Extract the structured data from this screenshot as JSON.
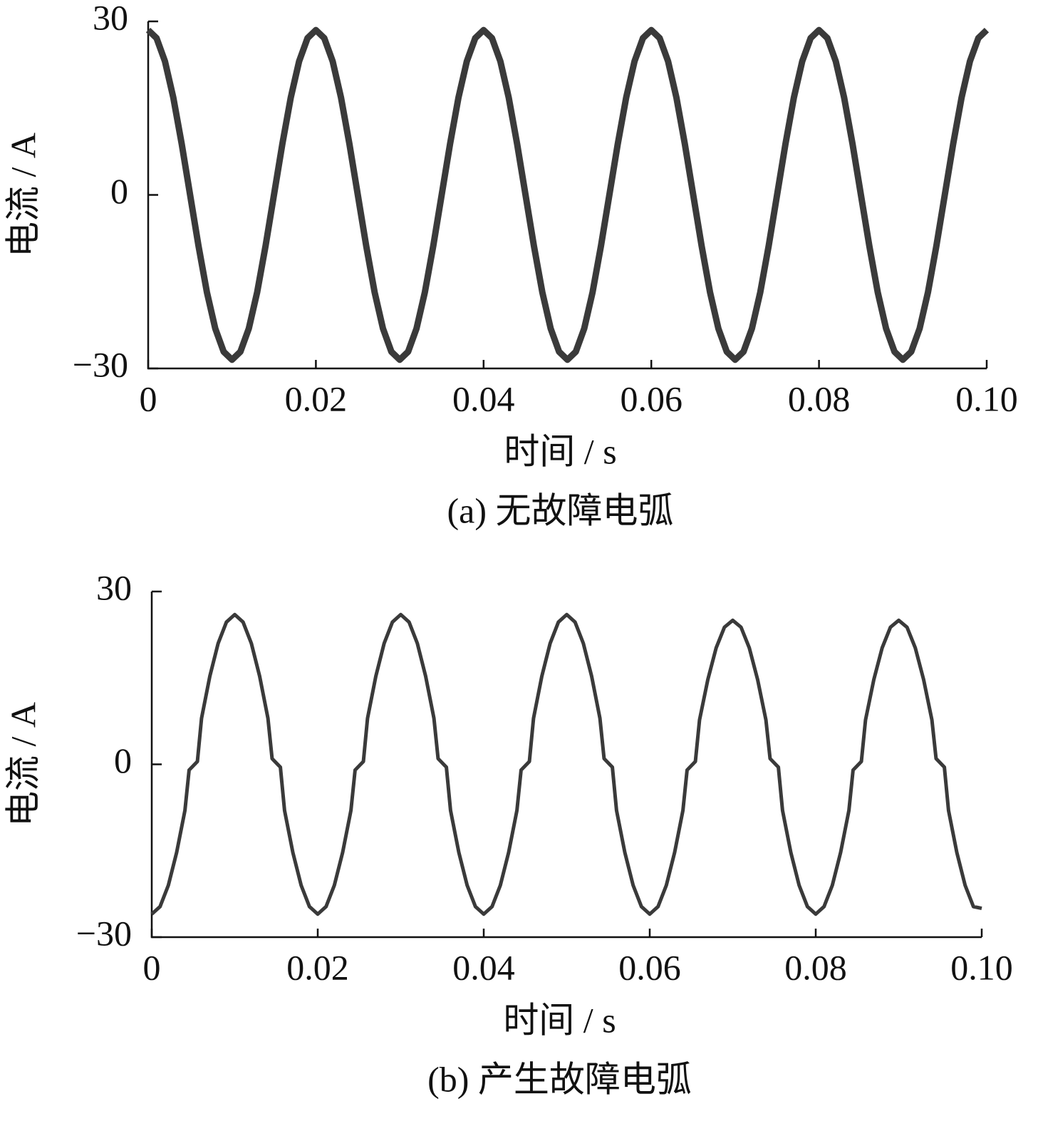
{
  "chart_data": [
    {
      "type": "line",
      "caption": "(a) 无故障电弧",
      "xlabel": "时间 / s",
      "ylabel": "电流 / A",
      "x": [
        0,
        0.001,
        0.002,
        0.003,
        0.004,
        0.005,
        0.006,
        0.007,
        0.008,
        0.009,
        0.01,
        0.011,
        0.012,
        0.013,
        0.014,
        0.015,
        0.016,
        0.017,
        0.018,
        0.019,
        0.02,
        0.021,
        0.022,
        0.023,
        0.024,
        0.025,
        0.026,
        0.027,
        0.028,
        0.029,
        0.03,
        0.031,
        0.032,
        0.033,
        0.034,
        0.035,
        0.036,
        0.037,
        0.038,
        0.039,
        0.04,
        0.041,
        0.042,
        0.043,
        0.044,
        0.045,
        0.046,
        0.047,
        0.048,
        0.049,
        0.05,
        0.051,
        0.052,
        0.053,
        0.054,
        0.055,
        0.056,
        0.057,
        0.058,
        0.059,
        0.06,
        0.061,
        0.062,
        0.063,
        0.064,
        0.065,
        0.066,
        0.067,
        0.068,
        0.069,
        0.07,
        0.071,
        0.072,
        0.073,
        0.074,
        0.075,
        0.076,
        0.077,
        0.078,
        0.079,
        0.08,
        0.081,
        0.082,
        0.083,
        0.084,
        0.085,
        0.086,
        0.087,
        0.088,
        0.089,
        0.09,
        0.091,
        0.092,
        0.093,
        0.094,
        0.095,
        0.096,
        0.097,
        0.098,
        0.099,
        0.1
      ],
      "series": [
        {
          "color": "#3a3a3a",
          "values": [
            28.5,
            27.1,
            23.1,
            16.8,
            8.8,
            0,
            -8.8,
            -16.8,
            -23.1,
            -27.1,
            -28.5,
            -27.1,
            -23.1,
            -16.8,
            -8.8,
            0,
            8.8,
            16.8,
            23.1,
            27.1,
            28.5,
            27.1,
            23.1,
            16.8,
            8.8,
            0,
            -8.8,
            -16.8,
            -23.1,
            -27.1,
            -28.5,
            -27.1,
            -23.1,
            -16.8,
            -8.8,
            0,
            8.8,
            16.8,
            23.1,
            27.1,
            28.5,
            27.1,
            23.1,
            16.8,
            8.8,
            0,
            -8.8,
            -16.8,
            -23.1,
            -27.1,
            -28.5,
            -27.1,
            -23.1,
            -16.8,
            -8.8,
            0,
            8.8,
            16.8,
            23.1,
            27.1,
            28.5,
            27.1,
            23.1,
            16.8,
            8.8,
            0,
            -8.8,
            -16.8,
            -23.1,
            -27.1,
            -28.5,
            -27.1,
            -23.1,
            -16.8,
            -8.8,
            0,
            8.8,
            16.8,
            23.1,
            27.1,
            28.5,
            27.1,
            23.1,
            16.8,
            8.8,
            0,
            -8.8,
            -16.8,
            -23.1,
            -27.1,
            -28.5,
            -27.1,
            -23.1,
            -16.8,
            -8.8,
            0,
            8.8,
            16.8,
            23.1,
            27.1,
            28.5
          ]
        }
      ],
      "xlim": [
        0,
        0.1
      ],
      "xticks": [
        0,
        0.02,
        0.04,
        0.06,
        0.08,
        {
          "value": 0.1,
          "label": "0.10"
        }
      ],
      "ylim": [
        -30,
        30
      ],
      "yticks": [
        {
          "value": -30,
          "label": "−30"
        },
        0,
        30
      ]
    },
    {
      "type": "line",
      "caption": "(b) 产生故障电弧",
      "xlabel": "时间 / s",
      "ylabel": "电流 / A",
      "x": [
        0,
        0.001,
        0.002,
        0.003,
        0.004,
        0.0045,
        0.0055,
        0.006,
        0.007,
        0.008,
        0.009,
        0.01,
        0.011,
        0.012,
        0.013,
        0.014,
        0.0145,
        0.0155,
        0.016,
        0.017,
        0.018,
        0.019,
        0.02,
        0.021,
        0.022,
        0.023,
        0.024,
        0.0245,
        0.0255,
        0.026,
        0.027,
        0.028,
        0.029,
        0.03,
        0.031,
        0.032,
        0.033,
        0.034,
        0.0345,
        0.0355,
        0.036,
        0.037,
        0.038,
        0.039,
        0.04,
        0.041,
        0.042,
        0.043,
        0.044,
        0.0445,
        0.0455,
        0.046,
        0.047,
        0.048,
        0.049,
        0.05,
        0.051,
        0.052,
        0.053,
        0.054,
        0.0545,
        0.0555,
        0.056,
        0.057,
        0.058,
        0.059,
        0.06,
        0.061,
        0.062,
        0.063,
        0.064,
        0.0645,
        0.0655,
        0.066,
        0.067,
        0.068,
        0.069,
        0.07,
        0.071,
        0.072,
        0.073,
        0.074,
        0.0745,
        0.0755,
        0.076,
        0.077,
        0.078,
        0.079,
        0.08,
        0.081,
        0.082,
        0.083,
        0.084,
        0.0845,
        0.0855,
        0.086,
        0.087,
        0.088,
        0.089,
        0.09,
        0.091,
        0.092,
        0.093,
        0.094,
        0.0945,
        0.0955,
        0.096,
        0.097,
        0.098,
        0.099,
        0.1
      ],
      "series": [
        {
          "color": "#3a3a3a",
          "values": [
            -26,
            -24.7,
            -21,
            -15.3,
            -8,
            -1,
            0.5,
            8,
            15.3,
            21,
            24.7,
            26,
            24.7,
            21,
            15.3,
            8,
            1,
            -0.5,
            -8,
            -15.3,
            -21,
            -24.7,
            -26,
            -24.7,
            -21,
            -15.3,
            -8,
            -1,
            0.5,
            8,
            15.3,
            21,
            24.7,
            26,
            24.7,
            21,
            15.3,
            8,
            1,
            -0.5,
            -8,
            -15.3,
            -21,
            -24.7,
            -26,
            -24.7,
            -21,
            -15.3,
            -8,
            -1,
            0.5,
            8,
            15.3,
            21,
            24.7,
            26,
            24.7,
            21,
            15.3,
            8,
            1,
            -0.5,
            -8,
            -15.3,
            -21,
            -24.7,
            -26,
            -24.7,
            -21,
            -15.3,
            -8,
            -1,
            0.5,
            7.7,
            14.7,
            20.2,
            23.8,
            25,
            23.8,
            20.2,
            14.7,
            7.7,
            1,
            -0.5,
            -8,
            -15.3,
            -21,
            -24.7,
            -26,
            -24.7,
            -21,
            -15.3,
            -8,
            -1,
            0.5,
            7.7,
            14.7,
            20.2,
            23.8,
            25,
            23.8,
            20.2,
            14.7,
            7.7,
            1,
            -0.5,
            -8,
            -15.3,
            -21,
            -24.7,
            -25
          ]
        }
      ],
      "xlim": [
        0,
        0.1
      ],
      "xticks": [
        0,
        0.02,
        0.04,
        0.06,
        0.08,
        {
          "value": 0.1,
          "label": "0.10"
        }
      ],
      "ylim": [
        -30,
        30
      ],
      "yticks": [
        {
          "value": -30,
          "label": "−30"
        },
        0,
        30
      ]
    }
  ]
}
